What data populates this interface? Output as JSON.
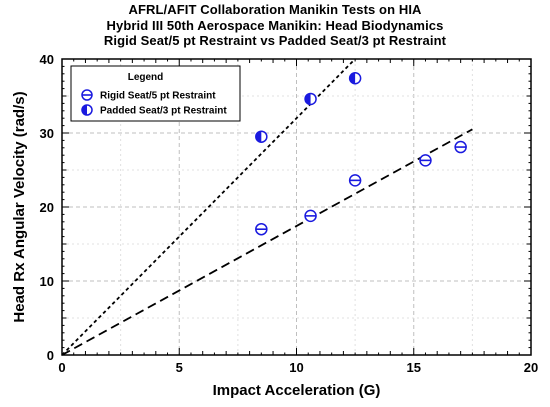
{
  "chart_data": {
    "type": "scatter",
    "title_lines": [
      "AFRL/AFIT Collaboration Manikin Tests on HIA",
      "Hybrid III 50th Aerospace Manikin:  Head Biodynamics",
      "Rigid Seat/5 pt Restraint  vs  Padded Seat/3 pt Restraint"
    ],
    "xlabel": "Impact Acceleration  (G)",
    "ylabel": "Head Rx Angular Velocity  (rad/s)",
    "xlim": [
      0,
      20
    ],
    "ylim": [
      0,
      40
    ],
    "xticks": [
      0,
      5,
      10,
      15,
      20
    ],
    "yticks": [
      0,
      10,
      20,
      30,
      40
    ],
    "grid": true,
    "legend": {
      "title": "Legend",
      "placement": "top-left",
      "entries": [
        "Rigid Seat/5 pt Restraint",
        "Padded Seat/3 pt Restraint"
      ]
    },
    "series": [
      {
        "name": "Rigid Seat/5 pt Restraint",
        "marker": "circle-horizontal-bar",
        "color": "#1a1adf",
        "points": [
          [
            8.5,
            17.0
          ],
          [
            10.6,
            18.8
          ],
          [
            12.5,
            23.6
          ],
          [
            15.5,
            26.3
          ],
          [
            17.0,
            28.1
          ]
        ],
        "trendline": {
          "style": "long-dash",
          "from": [
            0,
            0
          ],
          "to": [
            17.5,
            30.5
          ]
        }
      },
      {
        "name": "Padded Seat/3 pt Restraint",
        "marker": "circle-half-filled",
        "color": "#1a1adf",
        "points": [
          [
            8.5,
            29.5
          ],
          [
            10.6,
            34.6
          ],
          [
            12.5,
            37.4
          ]
        ],
        "trendline": {
          "style": "short-dash",
          "from": [
            0,
            0
          ],
          "to": [
            12.5,
            40
          ]
        }
      }
    ]
  }
}
